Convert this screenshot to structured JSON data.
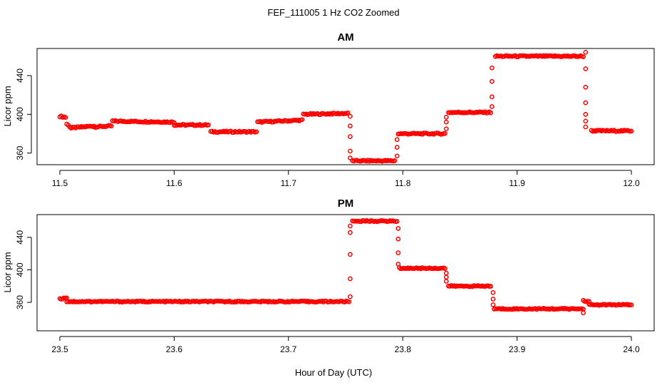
{
  "figure": {
    "title": "FEF_111005  1 Hz CO2 Zoomed",
    "xlabel": "Hour of Day (UTC)"
  },
  "chart_data": [
    {
      "type": "scatter",
      "title": "AM",
      "xlabel": "Hour of Day (UTC)",
      "ylabel": "Licor ppm",
      "xlim": [
        11.5,
        12.0
      ],
      "ylim": [
        348,
        468
      ],
      "xticks": [
        11.5,
        11.6,
        11.7,
        11.8,
        11.9,
        12.0
      ],
      "xtick_labels": [
        "11.5",
        "11.6",
        "11.7",
        "11.8",
        "11.9",
        "12.0"
      ],
      "yticks": [
        360,
        400,
        440
      ],
      "ytick_labels": [
        "360",
        "400",
        "440"
      ],
      "marker_color": "#ff0000",
      "series": [
        {
          "segments": [
            {
              "x": [
                11.5,
                11.505
              ],
              "y": [
                398,
                397
              ]
            },
            {
              "x": [
                11.506,
                11.51
              ],
              "y": [
                390,
                386
              ]
            },
            {
              "x": [
                11.51,
                11.53
              ],
              "y": [
                386,
                388
              ]
            },
            {
              "x": [
                11.53,
                11.545
              ],
              "y": [
                387,
                388
              ]
            },
            {
              "x": [
                11.546,
                11.6
              ],
              "y": [
                393,
                392
              ]
            },
            {
              "x": [
                11.6,
                11.63
              ],
              "y": [
                389,
                389
              ]
            },
            {
              "x": [
                11.632,
                11.672
              ],
              "y": [
                382,
                382
              ]
            },
            {
              "x": [
                11.673,
                11.712
              ],
              "y": [
                392,
                394
              ]
            },
            {
              "x": [
                11.713,
                11.752
              ],
              "y": [
                400,
                401
              ]
            },
            {
              "x": [
                11.756,
                11.793
              ],
              "y": [
                352,
                352
              ]
            },
            {
              "x": [
                11.796,
                11.837
              ],
              "y": [
                380,
                380
              ]
            },
            {
              "x": [
                11.84,
                11.877
              ],
              "y": [
                402,
                402
              ]
            },
            {
              "x": [
                11.881,
                11.958
              ],
              "y": [
                460,
                460
              ]
            },
            {
              "x": [
                11.965,
                12.0
              ],
              "y": [
                383,
                383
              ]
            }
          ],
          "transitions": [
            {
              "x": 11.754,
              "y": [
                398,
                388,
                377,
                362,
                355
              ]
            },
            {
              "x": 11.795,
              "y": [
                357,
                366,
                374
              ]
            },
            {
              "x": 11.838,
              "y": [
                385,
                392,
                397
              ]
            },
            {
              "x": 11.878,
              "y": [
                408,
                418,
                434,
                448
              ]
            },
            {
              "x": 11.96,
              "y": [
                464,
                447,
                428,
                412,
                400,
                393,
                387
              ]
            }
          ]
        }
      ]
    },
    {
      "type": "scatter",
      "title": "PM",
      "xlabel": "Hour of Day (UTC)",
      "ylabel": "Licor ppm",
      "xlim": [
        23.5,
        24.0
      ],
      "ylim": [
        325,
        468
      ],
      "xticks": [
        23.5,
        23.6,
        23.7,
        23.8,
        23.9,
        24.0
      ],
      "xtick_labels": [
        "23.5",
        "23.6",
        "23.7",
        "23.8",
        "23.9",
        "24.0"
      ],
      "yticks": [
        360,
        400,
        440
      ],
      "ytick_labels": [
        "360",
        "400",
        "440"
      ],
      "marker_color": "#ff0000",
      "series": [
        {
          "segments": [
            {
              "x": [
                23.5,
                23.506
              ],
              "y": [
                364,
                366
              ]
            },
            {
              "x": [
                23.506,
                23.753
              ],
              "y": [
                361,
                361
              ]
            },
            {
              "x": [
                23.756,
                23.795
              ],
              "y": [
                460,
                460
              ]
            },
            {
              "x": [
                23.797,
                23.837
              ],
              "y": [
                402,
                402
              ]
            },
            {
              "x": [
                23.84,
                23.877
              ],
              "y": [
                380,
                380
              ]
            },
            {
              "x": [
                23.88,
                23.958
              ],
              "y": [
                352,
                352
              ]
            },
            {
              "x": [
                23.958,
                23.963
              ],
              "y": [
                362,
                361
              ]
            },
            {
              "x": [
                23.963,
                24.0
              ],
              "y": [
                357,
                357
              ]
            }
          ],
          "transitions": [
            {
              "x": 23.754,
              "y": [
                367,
                389,
                419,
                446,
                454
              ]
            },
            {
              "x": 23.796,
              "y": [
                451,
                438,
                421,
                407
              ]
            },
            {
              "x": 23.838,
              "y": [
                396,
                391,
                386
              ]
            },
            {
              "x": 23.879,
              "y": [
                372,
                364,
                357
              ]
            },
            {
              "x": 23.958,
              "y": [
                347
              ]
            }
          ]
        }
      ]
    }
  ]
}
